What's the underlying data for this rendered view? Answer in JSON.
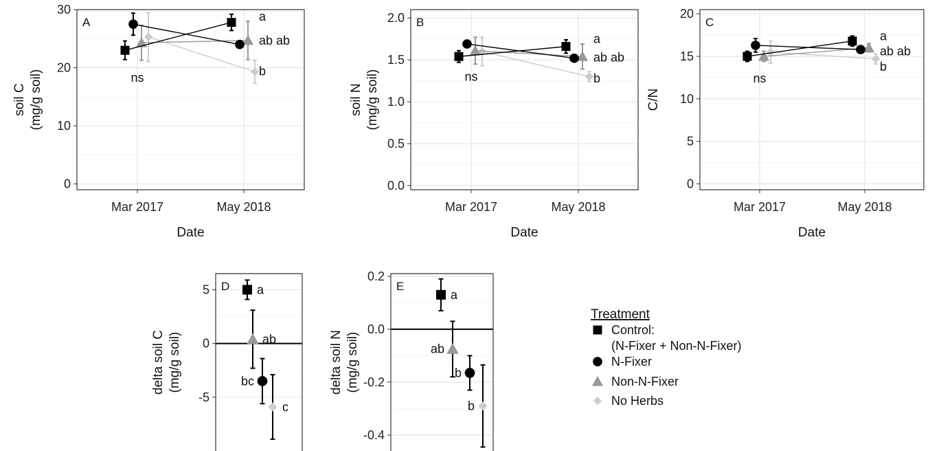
{
  "legend": {
    "title": "Treatment",
    "items": [
      {
        "series": "Control",
        "label": "Control:",
        "label2": "(N-Fixer + Non-N-Fixer)",
        "marker": "square",
        "color": "#000000"
      },
      {
        "series": "N-Fixer",
        "label": "N-Fixer",
        "label2": "",
        "marker": "circle",
        "color": "#000000"
      },
      {
        "series": "Non-N-Fixer",
        "label": "Non-N-Fixer",
        "label2": "",
        "marker": "triangle",
        "color": "#999999"
      },
      {
        "series": "No Herbs",
        "label": "No Herbs",
        "label2": "",
        "marker": "diamond",
        "color": "#cccccc"
      }
    ]
  },
  "chart_data": [
    {
      "id": "A",
      "type": "line",
      "panel_label": "A",
      "xlabel": "Date",
      "ylabel": "soil C",
      "ylabel2": "(mg/g soil)",
      "categories": [
        "Mar 2017",
        "May 2018"
      ],
      "ylim": [
        -1,
        30
      ],
      "yticks": [
        0,
        10,
        20,
        30
      ],
      "ytick_labels": [
        "0",
        "10",
        "20",
        "30"
      ],
      "series": [
        {
          "name": "Control",
          "values": [
            23.0,
            27.8
          ],
          "err": [
            1.6,
            1.4
          ]
        },
        {
          "name": "N-Fixer",
          "values": [
            27.5,
            24.0
          ],
          "err": [
            1.9,
            0.5
          ]
        },
        {
          "name": "Non-N-Fixer",
          "values": [
            24.3,
            24.7
          ],
          "err": [
            3.0,
            3.3
          ]
        },
        {
          "name": "No Herbs",
          "values": [
            25.3,
            19.3
          ],
          "err": [
            4.2,
            2.0
          ]
        }
      ],
      "annotations": [
        {
          "text": "ns",
          "cat": 0,
          "y": 18.3
        },
        {
          "text": "a",
          "cat": 1,
          "y": 28.8
        },
        {
          "text": "ab ab",
          "cat": 1,
          "y": 24.7
        },
        {
          "text": "b",
          "cat": 1,
          "y": 19.4
        }
      ]
    },
    {
      "id": "B",
      "type": "line",
      "panel_label": "B",
      "xlabel": "Date",
      "ylabel": "soil N",
      "ylabel2": "(mg/g soil)",
      "categories": [
        "Mar 2017",
        "May 2018"
      ],
      "ylim": [
        -0.05,
        2.1
      ],
      "yticks": [
        0,
        0.5,
        1.0,
        1.5,
        2.0
      ],
      "ytick_labels": [
        "0.0",
        "0.5",
        "1.0",
        "1.5",
        "2.0"
      ],
      "series": [
        {
          "name": "Control",
          "values": [
            1.54,
            1.66
          ],
          "err": [
            0.07,
            0.08
          ]
        },
        {
          "name": "N-Fixer",
          "values": [
            1.69,
            1.52
          ],
          "err": [
            0.03,
            0.03
          ]
        },
        {
          "name": "Non-N-Fixer",
          "values": [
            1.61,
            1.54
          ],
          "err": [
            0.16,
            0.15
          ]
        },
        {
          "name": "No Herbs",
          "values": [
            1.6,
            1.3
          ],
          "err": [
            0.17,
            0.06
          ]
        }
      ],
      "annotations": [
        {
          "text": "ns",
          "cat": 0,
          "y": 1.3
        },
        {
          "text": "a",
          "cat": 1,
          "y": 1.75
        },
        {
          "text": "ab ab",
          "cat": 1,
          "y": 1.53
        },
        {
          "text": "b",
          "cat": 1,
          "y": 1.28
        }
      ]
    },
    {
      "id": "C",
      "type": "line",
      "panel_label": "C",
      "xlabel": "Date",
      "ylabel": "C/N",
      "ylabel2": "",
      "categories": [
        "Mar 2017",
        "May 2018"
      ],
      "ylim": [
        -0.7,
        20.5
      ],
      "yticks": [
        0,
        5,
        10,
        15,
        20
      ],
      "ytick_labels": [
        "0",
        "5",
        "10",
        "15",
        "20"
      ],
      "series": [
        {
          "name": "Control",
          "values": [
            15.0,
            16.8
          ],
          "err": [
            0.6,
            0.6
          ]
        },
        {
          "name": "N-Fixer",
          "values": [
            16.3,
            15.8
          ],
          "err": [
            0.8,
            0.3
          ]
        },
        {
          "name": "Non-N-Fixer",
          "values": [
            15.0,
            16.0
          ],
          "err": [
            0.6,
            0.5
          ]
        },
        {
          "name": "No Herbs",
          "values": [
            15.5,
            14.7
          ],
          "err": [
            1.3,
            0.6
          ]
        }
      ],
      "annotations": [
        {
          "text": "ns",
          "cat": 0,
          "y": 12.4
        },
        {
          "text": "a",
          "cat": 1,
          "y": 17.4
        },
        {
          "text": "ab ab",
          "cat": 1,
          "y": 15.6
        },
        {
          "text": "b",
          "cat": 1,
          "y": 13.8
        }
      ]
    },
    {
      "id": "D",
      "type": "scatter",
      "panel_label": "D",
      "xlabel": "",
      "ylabel": "delta soil C",
      "ylabel2": "(mg/g soil)",
      "categories": [
        "Control",
        "Non-N-Fixer",
        "N-Fixer",
        "No Herbs"
      ],
      "ylim": [
        -10,
        6.5
      ],
      "yticks": [
        -5,
        0,
        5
      ],
      "ytick_labels": [
        "-5",
        "0",
        "5"
      ],
      "hline": 0,
      "points": [
        {
          "series": "Control",
          "value": 5.0,
          "err": 0.9,
          "label": "a",
          "label_side": "right"
        },
        {
          "series": "Non-N-Fixer",
          "value": 0.4,
          "err": 2.7,
          "label": "ab",
          "label_side": "right"
        },
        {
          "series": "N-Fixer",
          "value": -3.5,
          "err": 2.1,
          "label": "bc",
          "label_side": "left"
        },
        {
          "series": "No Herbs",
          "value": -5.9,
          "err": 3.0,
          "label": "c",
          "label_side": "right"
        }
      ]
    },
    {
      "id": "E",
      "type": "scatter",
      "panel_label": "E",
      "xlabel": "",
      "ylabel": "delta soil N",
      "ylabel2": "(mg/g soil)",
      "categories": [
        "Control",
        "Non-N-Fixer",
        "N-Fixer",
        "No Herbs"
      ],
      "ylim": [
        -0.46,
        0.21
      ],
      "yticks": [
        -0.4,
        -0.2,
        0.0,
        0.2
      ],
      "ytick_labels": [
        "-0.4",
        "-0.2",
        "0.0",
        "0.2"
      ],
      "hline": 0,
      "points": [
        {
          "series": "Control",
          "value": 0.13,
          "err": 0.06,
          "label": "a",
          "label_side": "right"
        },
        {
          "series": "Non-N-Fixer",
          "value": -0.075,
          "err": 0.105,
          "label": "ab",
          "label_side": "left"
        },
        {
          "series": "N-Fixer",
          "value": -0.165,
          "err": 0.065,
          "label": "b",
          "label_side": "left"
        },
        {
          "series": "No Herbs",
          "value": -0.29,
          "err": 0.155,
          "label": "b",
          "label_side": "left"
        }
      ]
    }
  ]
}
